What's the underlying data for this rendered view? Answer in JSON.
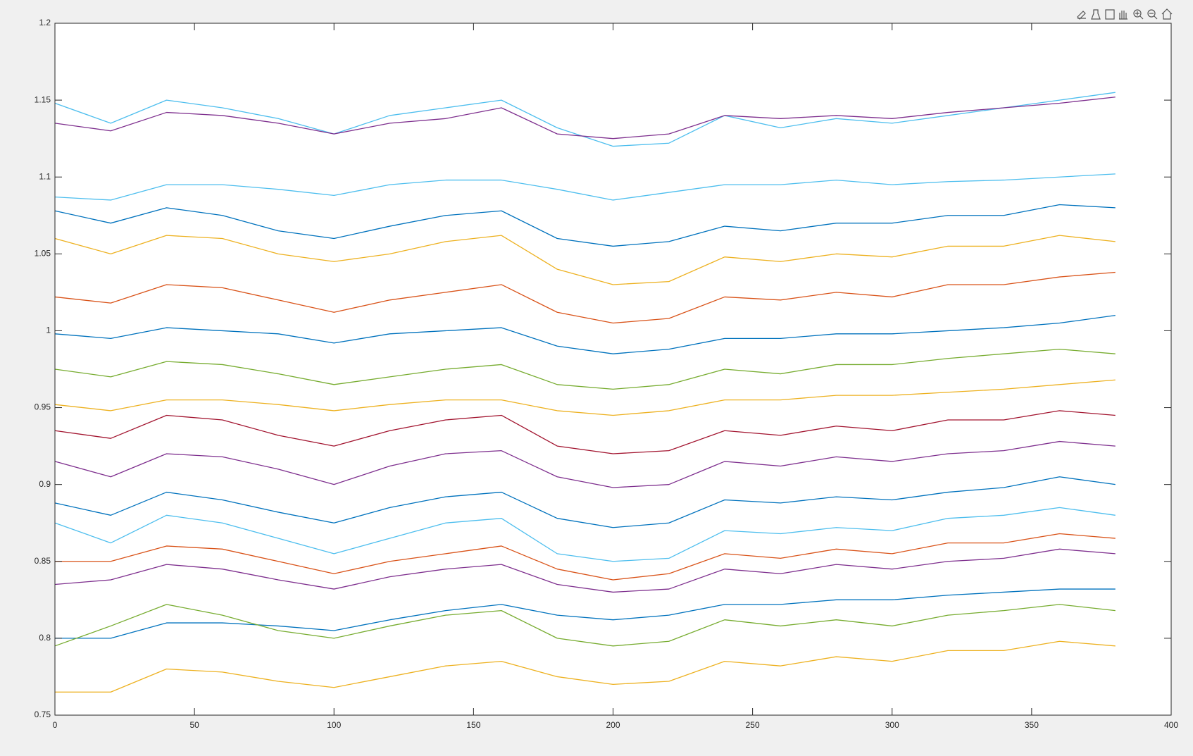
{
  "chart_data": {
    "type": "line",
    "x": [
      0,
      20,
      40,
      60,
      80,
      100,
      120,
      140,
      160,
      180,
      200,
      220,
      240,
      260,
      280,
      300,
      320,
      340,
      360,
      380
    ],
    "xlim": [
      0,
      400
    ],
    "xticks": [
      0,
      50,
      100,
      150,
      200,
      250,
      300,
      350,
      400
    ],
    "ylim": [
      0.75,
      1.2
    ],
    "yticks": [
      0.75,
      0.8,
      0.85,
      0.9,
      0.95,
      1,
      1.05,
      1.1,
      1.15,
      1.2
    ],
    "grid": false,
    "series": [
      {
        "color": "#4DBEEE",
        "values": [
          1.148,
          1.135,
          1.15,
          1.145,
          1.138,
          1.128,
          1.14,
          1.145,
          1.15,
          1.132,
          1.12,
          1.122,
          1.14,
          1.132,
          1.138,
          1.135,
          1.14,
          1.145,
          1.15,
          1.155
        ]
      },
      {
        "color": "#7E2F8E",
        "values": [
          1.135,
          1.13,
          1.142,
          1.14,
          1.135,
          1.128,
          1.135,
          1.138,
          1.145,
          1.128,
          1.125,
          1.128,
          1.14,
          1.138,
          1.14,
          1.138,
          1.142,
          1.145,
          1.148,
          1.152
        ]
      },
      {
        "color": "#4DBEEE",
        "values": [
          1.087,
          1.085,
          1.095,
          1.095,
          1.092,
          1.088,
          1.095,
          1.098,
          1.098,
          1.092,
          1.085,
          1.09,
          1.095,
          1.095,
          1.098,
          1.095,
          1.097,
          1.098,
          1.1,
          1.102
        ]
      },
      {
        "color": "#0072BD",
        "values": [
          1.078,
          1.07,
          1.08,
          1.075,
          1.065,
          1.06,
          1.068,
          1.075,
          1.078,
          1.06,
          1.055,
          1.058,
          1.068,
          1.065,
          1.07,
          1.07,
          1.075,
          1.075,
          1.082,
          1.08
        ]
      },
      {
        "color": "#EDB120",
        "values": [
          1.06,
          1.05,
          1.062,
          1.06,
          1.05,
          1.045,
          1.05,
          1.058,
          1.062,
          1.04,
          1.03,
          1.032,
          1.048,
          1.045,
          1.05,
          1.048,
          1.055,
          1.055,
          1.062,
          1.058
        ]
      },
      {
        "color": "#D95319",
        "values": [
          1.022,
          1.018,
          1.03,
          1.028,
          1.02,
          1.012,
          1.02,
          1.025,
          1.03,
          1.012,
          1.005,
          1.008,
          1.022,
          1.02,
          1.025,
          1.022,
          1.03,
          1.03,
          1.035,
          1.038
        ]
      },
      {
        "color": "#0072BD",
        "values": [
          0.998,
          0.995,
          1.002,
          1.0,
          0.998,
          0.992,
          0.998,
          1.0,
          1.002,
          0.99,
          0.985,
          0.988,
          0.995,
          0.995,
          0.998,
          0.998,
          1.0,
          1.002,
          1.005,
          1.01
        ]
      },
      {
        "color": "#77AC30",
        "values": [
          0.975,
          0.97,
          0.98,
          0.978,
          0.972,
          0.965,
          0.97,
          0.975,
          0.978,
          0.965,
          0.962,
          0.965,
          0.975,
          0.972,
          0.978,
          0.978,
          0.982,
          0.985,
          0.988,
          0.985
        ]
      },
      {
        "color": "#EDB120",
        "values": [
          0.952,
          0.948,
          0.955,
          0.955,
          0.952,
          0.948,
          0.952,
          0.955,
          0.955,
          0.948,
          0.945,
          0.948,
          0.955,
          0.955,
          0.958,
          0.958,
          0.96,
          0.962,
          0.965,
          0.968
        ]
      },
      {
        "color": "#A2142F",
        "values": [
          0.935,
          0.93,
          0.945,
          0.942,
          0.932,
          0.925,
          0.935,
          0.942,
          0.945,
          0.925,
          0.92,
          0.922,
          0.935,
          0.932,
          0.938,
          0.935,
          0.942,
          0.942,
          0.948,
          0.945
        ]
      },
      {
        "color": "#7E2F8E",
        "values": [
          0.915,
          0.905,
          0.92,
          0.918,
          0.91,
          0.9,
          0.912,
          0.92,
          0.922,
          0.905,
          0.898,
          0.9,
          0.915,
          0.912,
          0.918,
          0.915,
          0.92,
          0.922,
          0.928,
          0.925
        ]
      },
      {
        "color": "#0072BD",
        "values": [
          0.888,
          0.88,
          0.895,
          0.89,
          0.882,
          0.875,
          0.885,
          0.892,
          0.895,
          0.878,
          0.872,
          0.875,
          0.89,
          0.888,
          0.892,
          0.89,
          0.895,
          0.898,
          0.905,
          0.9
        ]
      },
      {
        "color": "#4DBEEE",
        "values": [
          0.875,
          0.862,
          0.88,
          0.875,
          0.865,
          0.855,
          0.865,
          0.875,
          0.878,
          0.855,
          0.85,
          0.852,
          0.87,
          0.868,
          0.872,
          0.87,
          0.878,
          0.88,
          0.885,
          0.88
        ]
      },
      {
        "color": "#D95319",
        "values": [
          0.85,
          0.85,
          0.86,
          0.858,
          0.85,
          0.842,
          0.85,
          0.855,
          0.86,
          0.845,
          0.838,
          0.842,
          0.855,
          0.852,
          0.858,
          0.855,
          0.862,
          0.862,
          0.868,
          0.865
        ]
      },
      {
        "color": "#7E2F8E",
        "values": [
          0.835,
          0.838,
          0.848,
          0.845,
          0.838,
          0.832,
          0.84,
          0.845,
          0.848,
          0.835,
          0.83,
          0.832,
          0.845,
          0.842,
          0.848,
          0.845,
          0.85,
          0.852,
          0.858,
          0.855
        ]
      },
      {
        "color": "#0072BD",
        "values": [
          0.8,
          0.8,
          0.81,
          0.81,
          0.808,
          0.805,
          0.812,
          0.818,
          0.822,
          0.815,
          0.812,
          0.815,
          0.822,
          0.822,
          0.825,
          0.825,
          0.828,
          0.83,
          0.832,
          0.832
        ]
      },
      {
        "color": "#77AC30",
        "values": [
          0.795,
          0.808,
          0.822,
          0.815,
          0.805,
          0.8,
          0.808,
          0.815,
          0.818,
          0.8,
          0.795,
          0.798,
          0.812,
          0.808,
          0.812,
          0.808,
          0.815,
          0.818,
          0.822,
          0.818
        ]
      },
      {
        "color": "#EDB120",
        "values": [
          0.765,
          0.765,
          0.78,
          0.778,
          0.772,
          0.768,
          0.775,
          0.782,
          0.785,
          0.775,
          0.77,
          0.772,
          0.785,
          0.782,
          0.788,
          0.785,
          0.792,
          0.792,
          0.798,
          0.795
        ]
      }
    ]
  }
}
